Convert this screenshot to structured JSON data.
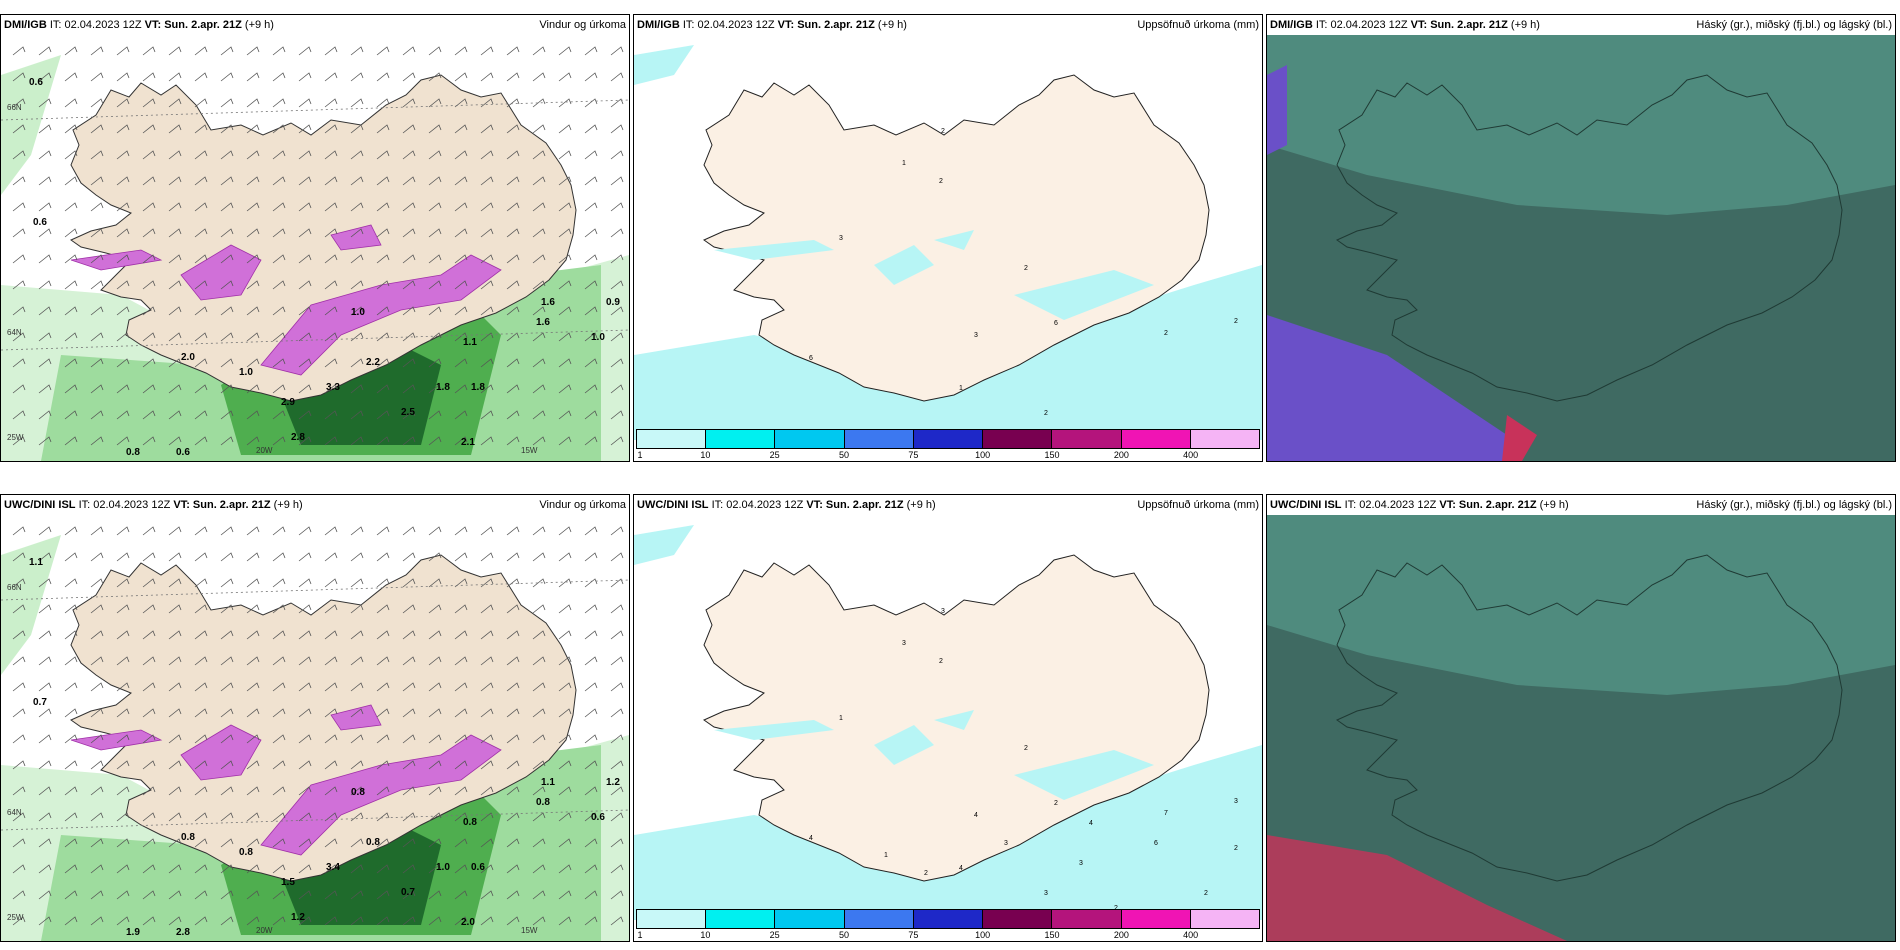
{
  "panels": [
    {
      "model": "DMI/IGB",
      "it": "IT: 02.04.2023 12Z",
      "vt_label": "VT:",
      "vt": "Sun. 2.apr. 21Z",
      "lead": "(+9 h)",
      "title": "Vindur og úrkoma"
    },
    {
      "model": "DMI/IGB",
      "it": "IT: 02.04.2023 12Z",
      "vt_label": "VT:",
      "vt": "Sun. 2.apr. 21Z",
      "lead": "(+9 h)",
      "title": "Uppsöfnuð úrkoma (mm)"
    },
    {
      "model": "DMI/IGB",
      "it": "IT: 02.04.2023 12Z",
      "vt_label": "VT:",
      "vt": "Sun. 2.apr. 21Z",
      "lead": "(+9 h)",
      "title": "Háský (gr.), miðský (fj.bl.) og lágský (bl.)"
    },
    {
      "model": "UWC/DINI ISL",
      "it": "IT: 02.04.2023 12Z",
      "vt_label": "VT:",
      "vt": "Sun. 2.apr. 21Z",
      "lead": "(+9 h)",
      "title": "Vindur og úrkoma"
    },
    {
      "model": "UWC/DINI ISL",
      "it": "IT: 02.04.2023 12Z",
      "vt_label": "VT:",
      "vt": "Sun. 2.apr. 21Z",
      "lead": "(+9 h)",
      "title": "Uppsöfnuð úrkoma (mm)"
    },
    {
      "model": "UWC/DINI ISL",
      "it": "IT: 02.04.2023 12Z",
      "vt_label": "VT:",
      "vt": "Sun. 2.apr. 21Z",
      "lead": "(+9 h)",
      "title": "Háský (gr.), miðský (fj.bl.) og lágský (bl.)"
    }
  ],
  "precip_colorbar": {
    "ticks": [
      "1",
      "10",
      "25",
      "50",
      "75",
      "100",
      "150",
      "200",
      "400"
    ],
    "colors": [
      "#c8f8f8",
      "#00f0f0",
      "#00c8f0",
      "#3c78f0",
      "#1e28c8",
      "#780050",
      "#b4147c",
      "#f014b4",
      "#f5b4f5"
    ]
  },
  "wind_axis_labels": {
    "lat_66": "66N",
    "lat_64": "64N",
    "lon_25": "25W",
    "lon_20": "20W",
    "lon_15": "15W"
  },
  "wind_values_top": [
    "0.6",
    "0.6",
    "0.9",
    "1.0",
    "1.6",
    "1.1",
    "2.0",
    "1.0",
    "1.8",
    "1.8",
    "2.5",
    "2.8",
    "2.1",
    "0.8",
    "0.6",
    "1.0",
    "1.6",
    "2.2",
    "3.3",
    "2.9"
  ],
  "wind_values_bottom": [
    "1.1",
    "0.7",
    "1.2",
    "0.6",
    "0.8",
    "0.8",
    "0.8",
    "0.8",
    "1.0",
    "0.6",
    "0.7",
    "1.2",
    "2.0",
    "1.9",
    "2.8",
    "0.8",
    "1.1",
    "0.8",
    "3.4",
    "1.5"
  ],
  "precip_values_top": [
    "2",
    "1",
    "2",
    "3",
    "6",
    "2",
    "6",
    "2",
    "2",
    "2",
    "1",
    "3"
  ],
  "precip_values_bottom": [
    "3",
    "3",
    "2",
    "1",
    "4",
    "2",
    "2",
    "7",
    "3",
    "3",
    "4",
    "4",
    "3",
    "4",
    "6",
    "3",
    "2",
    "2",
    "1",
    "2",
    "2",
    "1",
    "2"
  ],
  "colors": {
    "land": "#f0e2d0",
    "land_light": "#fbf0e4",
    "sea_precip": "#b7f5f5",
    "cloud_bg": "#3f6a62",
    "cloud_upper": "#5aa291",
    "cloud_red": "#c8325a",
    "cloud_blue": "#6a50c8"
  }
}
